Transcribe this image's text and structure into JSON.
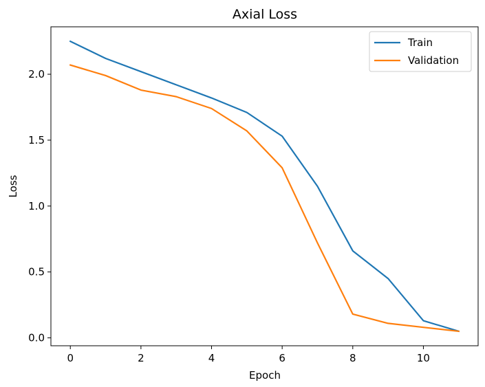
{
  "chart_data": {
    "type": "line",
    "title": "Axial Loss",
    "xlabel": "Epoch",
    "ylabel": "Loss",
    "xlim": [
      -0.55,
      11.55
    ],
    "ylim": [
      -0.06,
      2.36
    ],
    "xticks": [
      0,
      2,
      4,
      6,
      8,
      10
    ],
    "xtick_labels": [
      "0",
      "2",
      "4",
      "6",
      "8",
      "10"
    ],
    "yticks": [
      0.0,
      0.5,
      1.0,
      1.5,
      2.0
    ],
    "ytick_labels": [
      "0.0",
      "0.5",
      "1.0",
      "1.5",
      "2.0"
    ],
    "x": [
      0,
      1,
      2,
      3,
      4,
      5,
      6,
      7,
      8,
      9,
      10,
      11
    ],
    "series": [
      {
        "name": "Train",
        "color": "#1f77b4",
        "values": [
          2.25,
          2.12,
          2.02,
          1.92,
          1.82,
          1.71,
          1.53,
          1.15,
          0.66,
          0.45,
          0.13,
          0.05
        ]
      },
      {
        "name": "Validation",
        "color": "#ff7f0e",
        "values": [
          2.07,
          1.99,
          1.88,
          1.83,
          1.74,
          1.57,
          1.29,
          0.72,
          0.18,
          0.11,
          0.08,
          0.05
        ]
      }
    ],
    "grid": false,
    "legend_position": "top-right"
  }
}
